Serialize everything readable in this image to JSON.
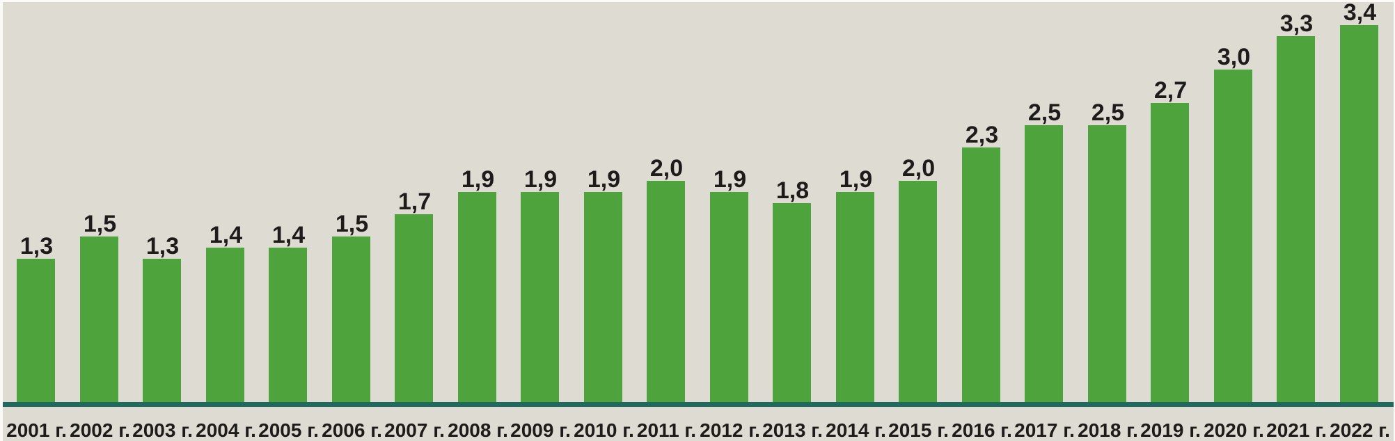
{
  "chart_data": {
    "type": "bar",
    "title": "",
    "xlabel": "",
    "ylabel": "",
    "categories": [
      "2001 г.",
      "2002 г.",
      "2003 г.",
      "2004 г.",
      "2005 г.",
      "2006 г.",
      "2007 г.",
      "2008 г.",
      "2009 г.",
      "2010 г.",
      "2011 г.",
      "2012 г.",
      "2013 г.",
      "2014 г.",
      "2015 г.",
      "2016 г.",
      "2017 г.",
      "2018 г.",
      "2019 г.",
      "2020 г.",
      "2021 г.",
      "2022 г."
    ],
    "values": [
      1.3,
      1.5,
      1.3,
      1.4,
      1.4,
      1.5,
      1.7,
      1.9,
      1.9,
      1.9,
      2.0,
      1.9,
      1.8,
      1.9,
      2.0,
      2.3,
      2.5,
      2.5,
      2.7,
      3.0,
      3.3,
      3.4
    ],
    "value_labels": [
      "1,3",
      "1,5",
      "1,3",
      "1,4",
      "1,4",
      "1,5",
      "1,7",
      "1,9",
      "1,9",
      "1,9",
      "2,0",
      "1,9",
      "1,8",
      "1,9",
      "2,0",
      "2,3",
      "2,5",
      "2,5",
      "2,7",
      "3,0",
      "3,3",
      "3,4"
    ],
    "ylim": [
      0,
      3.6
    ],
    "grid": false,
    "legend": null,
    "decimal_separator": "comma",
    "value_labels_position": "above-bars",
    "colors": {
      "bar": "#4fa33d",
      "baseline": "#20695f",
      "background": "#dedbd3",
      "text": "#1e1c1a",
      "outer_border": "#fbfaf7"
    }
  }
}
